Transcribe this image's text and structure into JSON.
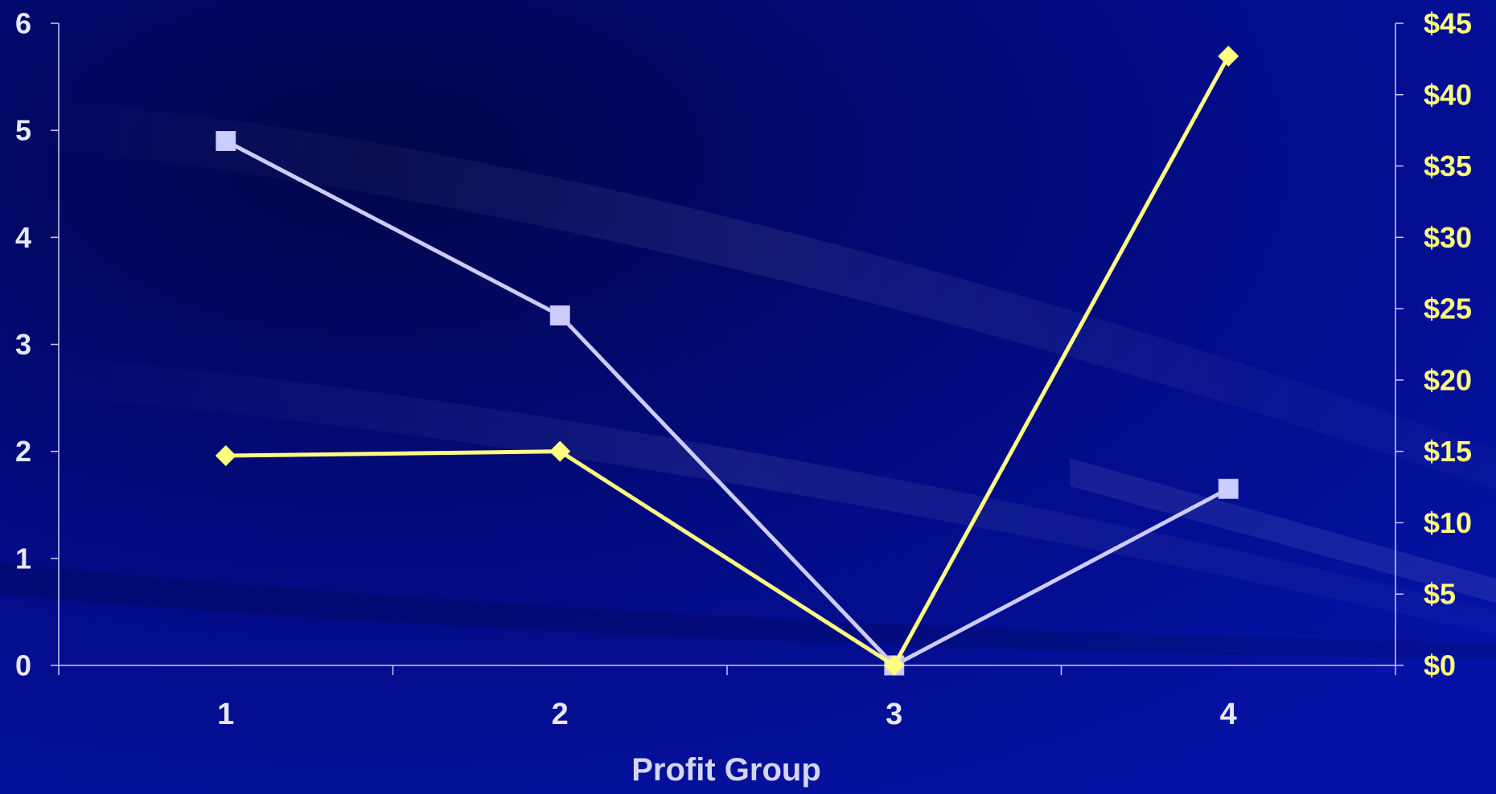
{
  "chart_data": {
    "type": "line",
    "title": "",
    "xlabel": "Profit Group",
    "categories": [
      "1",
      "2",
      "3",
      "4"
    ],
    "y_left": {
      "ylim": [
        0,
        6
      ],
      "ticks": [
        "0",
        "1",
        "2",
        "3",
        "4",
        "5",
        "6"
      ]
    },
    "y_right": {
      "ylim": [
        0,
        45
      ],
      "ticks": [
        "$0",
        "$5",
        "$10",
        "$15",
        "$20",
        "$25",
        "$30",
        "$35",
        "$40",
        "$45"
      ]
    },
    "series": [
      {
        "values": [
          4.9,
          3.27,
          0,
          1.65
        ],
        "axis": "left",
        "marker": "square",
        "color": "#ccccff"
      },
      {
        "values": [
          14.7,
          15,
          0,
          42.7
        ],
        "axis": "right",
        "marker": "diamond",
        "color": "#ffff80"
      }
    ],
    "grid": false,
    "legend": "none",
    "colors": {
      "background": "#000a8c",
      "axis": "#c8cbeb",
      "left_ticks": "#e6e8f8",
      "right_ticks": "#ffff80"
    }
  }
}
